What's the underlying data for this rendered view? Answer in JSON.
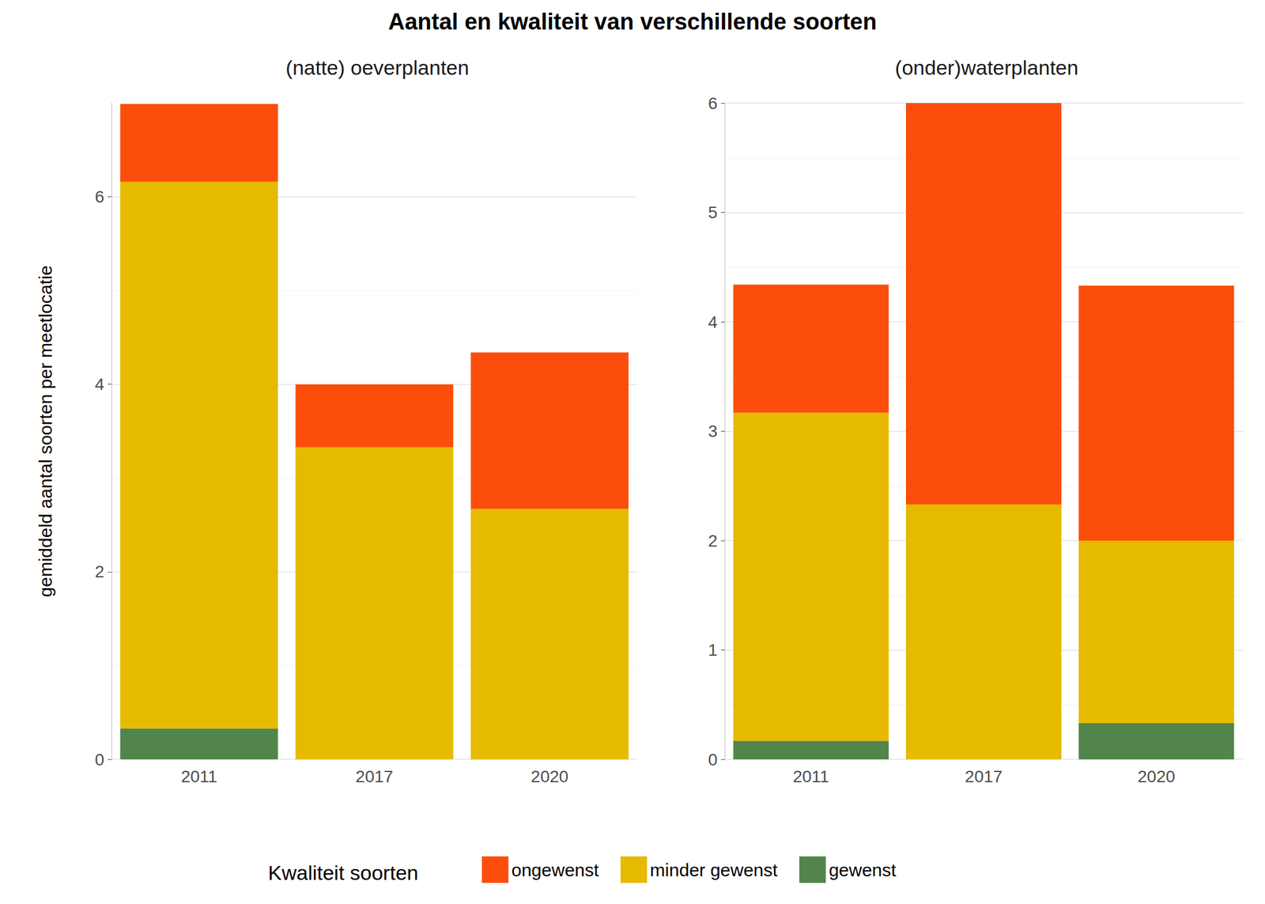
{
  "chart_data": {
    "type": "bar",
    "title": "Aantal en kwaliteit van verschillende soorten",
    "y_label": "gemiddeld aantal soorten per meetlocatie",
    "legend_title": "Kwaliteit soorten",
    "stacked": true,
    "grid": true,
    "legend": "bottom",
    "legend_order": [
      "ongewenst",
      "minder gewenst",
      "gewenst"
    ],
    "panels": [
      {
        "subtitle": "(natte) oeverplanten",
        "categories": [
          "2011",
          "2017",
          "2020"
        ],
        "ylim": [
          0,
          7
        ],
        "yticks": [
          0,
          2,
          4,
          6
        ],
        "series": [
          {
            "name": "gewenst",
            "color": "#52854C",
            "values": [
              0.33,
              0,
              0
            ]
          },
          {
            "name": "minder gewenst",
            "color": "#E5BA00",
            "values": [
              5.83,
              3.33,
              2.67
            ]
          },
          {
            "name": "ongewenst",
            "color": "#FC4E0A",
            "values": [
              0.83,
              0.67,
              1.67
            ]
          }
        ]
      },
      {
        "subtitle": "(onder)waterplanten",
        "categories": [
          "2011",
          "2017",
          "2020"
        ],
        "ylim": [
          0,
          6
        ],
        "yticks": [
          0,
          1,
          2,
          3,
          4,
          5,
          6
        ],
        "series": [
          {
            "name": "gewenst",
            "color": "#52854C",
            "values": [
              0.17,
              0,
              0.33
            ]
          },
          {
            "name": "minder gewenst",
            "color": "#E5BA00",
            "values": [
              3.0,
              2.33,
              1.67
            ]
          },
          {
            "name": "ongewenst",
            "color": "#FC4E0A",
            "values": [
              1.17,
              3.67,
              2.33
            ]
          }
        ]
      }
    ]
  }
}
